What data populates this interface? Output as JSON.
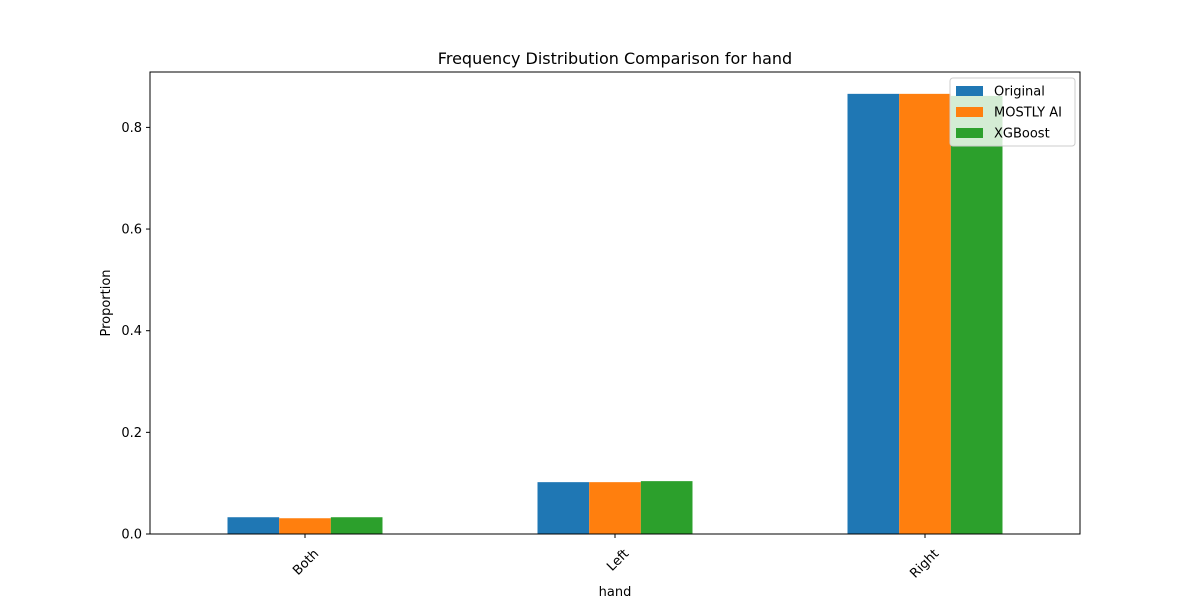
{
  "chart_data": {
    "type": "bar",
    "title": "Frequency Distribution Comparison for hand",
    "xlabel": "hand",
    "ylabel": "Proportion",
    "categories": [
      "Both",
      "Left",
      "Right"
    ],
    "series": [
      {
        "name": "Original",
        "color": "#1f77b4",
        "values": [
          0.033,
          0.102,
          0.866
        ]
      },
      {
        "name": "MOSTLY AI",
        "color": "#ff7f0e",
        "values": [
          0.031,
          0.102,
          0.866
        ]
      },
      {
        "name": "XGBoost",
        "color": "#2ca02c",
        "values": [
          0.033,
          0.104,
          0.862
        ]
      }
    ],
    "ylim": [
      0,
      0.909
    ],
    "yticks": [
      0.0,
      0.2,
      0.4,
      0.6,
      0.8
    ],
    "ytick_labels": [
      "0.0",
      "0.2",
      "0.4",
      "0.6",
      "0.8"
    ],
    "xtick_rotation": 45,
    "grid": false,
    "legend_position": "top-right"
  }
}
